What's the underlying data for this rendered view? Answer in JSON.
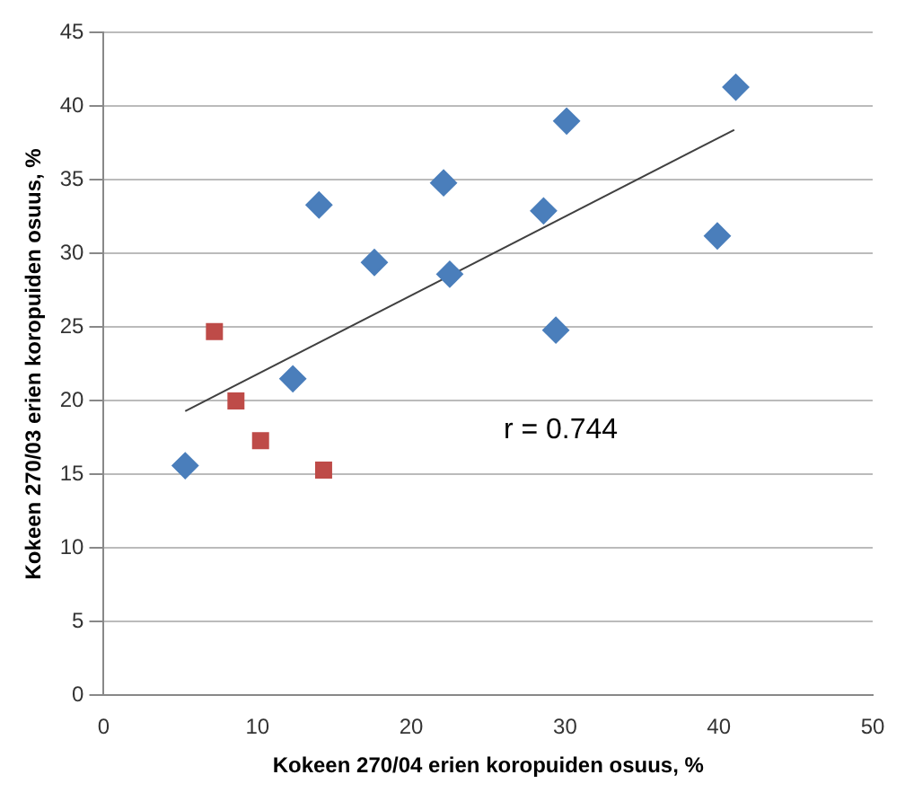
{
  "chart_data": {
    "type": "scatter",
    "xlabel": "Kokeen 270/04 erien koropuiden osuus, %",
    "ylabel": "Kokeen 270/03 erien koropuiden osuus, %",
    "xlim": [
      0,
      50
    ],
    "xticks": [
      0,
      10,
      20,
      30,
      40,
      50
    ],
    "ylim": [
      0,
      45
    ],
    "yticks": [
      0,
      5,
      10,
      15,
      20,
      25,
      30,
      35,
      40,
      45
    ],
    "grid": "y",
    "legend": false,
    "annotations": [
      "r = 0.744"
    ],
    "series": [
      {
        "type": "scatter",
        "color": "#4a7ebb",
        "marker": "diamond",
        "x": [
          5.3,
          12.3,
          14,
          17.6,
          22.1,
          22.5,
          28.6,
          29.4,
          30.1,
          39.9,
          41.1
        ],
        "values": [
          15.6,
          21.5,
          33.3,
          29.4,
          34.8,
          28.6,
          32.9,
          24.8,
          39,
          31.2,
          41.3
        ]
      },
      {
        "type": "scatter",
        "color": "#be4b48",
        "marker": "square",
        "x": [
          7.2,
          8.6,
          10.2,
          14.3
        ],
        "values": [
          24.7,
          20,
          17.3,
          15.3
        ]
      },
      {
        "type": "line",
        "color": "#404040",
        "marker": "none",
        "x": [
          5.3,
          41
        ],
        "values": [
          19.3,
          38.4
        ]
      }
    ]
  }
}
